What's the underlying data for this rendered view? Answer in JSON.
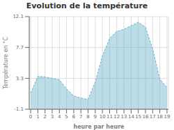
{
  "chart_data": {
    "type": "area",
    "title": "Evolution de la température",
    "x_label": "heure par heure",
    "y_label": "Température en °C",
    "x": [
      0,
      1,
      2,
      3,
      4,
      5,
      6,
      7,
      8,
      9,
      10,
      11,
      12,
      13,
      14,
      15,
      16,
      17,
      18,
      19
    ],
    "values": [
      1.2,
      3.6,
      3.5,
      3.3,
      3.1,
      1.8,
      0.8,
      0.5,
      0.3,
      2.8,
      6.5,
      9.0,
      10.0,
      10.3,
      10.8,
      11.3,
      10.6,
      7.5,
      3.2,
      2.0
    ],
    "color": "#6ab4cc",
    "line_style": "dashed",
    "xlim": [
      -0.2,
      19.2
    ],
    "xticks": [
      0,
      1,
      2,
      3,
      4,
      5,
      6,
      7,
      8,
      9,
      10,
      11,
      12,
      13,
      14,
      15,
      16,
      17,
      18,
      19
    ],
    "ylim": [
      -1.1,
      12.1
    ],
    "yticks": [
      -1.1,
      3.3,
      7.7,
      12.1
    ],
    "grid": true
  }
}
